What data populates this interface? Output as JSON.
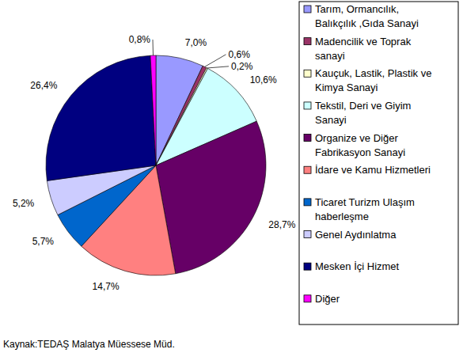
{
  "chart_data": {
    "type": "pie",
    "categories": [
      "Tarım, Ormancılık, Balıkçılık ,Gıda Sanayi",
      "Madencilik ve Toprak sanayi",
      "Kauçuk, Lastik, Plastik ve Kimya Sanayi",
      "Tekstil, Deri ve Giyim Sanayi",
      "Organize ve Diğer Fabrikasyon Sanayi",
      "İdare ve Kamu Hizmetleri",
      "Ticaret Turizm Ulaşım haberleşme",
      "Genel Aydınlatma",
      "Mesken İçi Hizmet",
      "Diğer"
    ],
    "values": [
      7.0,
      0.6,
      0.2,
      10.6,
      28.7,
      14.7,
      5.7,
      5.2,
      26.4,
      0.8
    ],
    "value_labels": [
      "7,0%",
      "0,6%",
      "0,2%",
      "10,6%",
      "28,7%",
      "14,7%",
      "5,7%",
      "5,2%",
      "26,4%",
      "0,8%"
    ],
    "colors": [
      "#9999ff",
      "#993366",
      "#ffffcc",
      "#ccffff",
      "#660066",
      "#ff8080",
      "#0066cc",
      "#ccccff",
      "#000080",
      "#ff00ff"
    ],
    "data_labels": true,
    "legend": "right",
    "source": "Kaynak:TEDAŞ Malatya Müessese Müd."
  }
}
